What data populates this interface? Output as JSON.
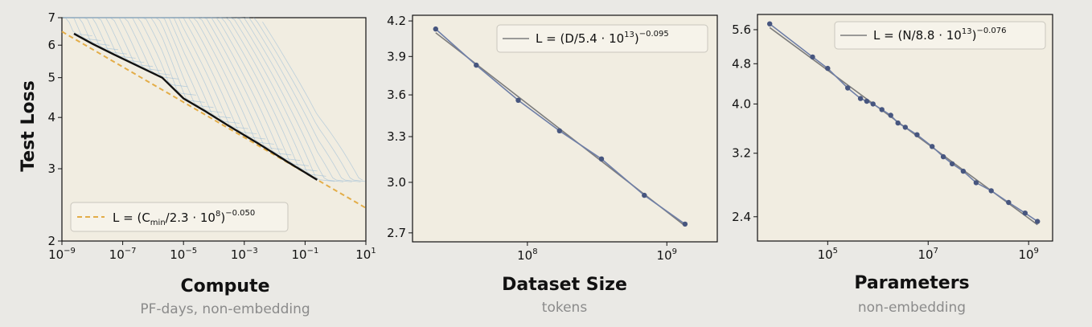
{
  "figure": {
    "ylabel": "Test Loss",
    "colors": {
      "background": "#eae9e5",
      "plot_area": "#f1ede1",
      "fit_dashed": "#e3ad48",
      "envelope": "#111111",
      "curves": "#8fb6d6",
      "data_line": "#6f7fa7",
      "fit_line": "#7c7c7c",
      "marker": "#47567f",
      "big_title": "#111111",
      "subtitle": "#8b8b8b"
    }
  },
  "panels": [
    {
      "id": "compute",
      "title": "Compute",
      "subtitle": "PF-days, non-embedding",
      "legend": {
        "label": "L = (C",
        "subscript": "min",
        "rest": "/2.3 · 10",
        "exp_base": "8",
        "exp": "−0.050"
      },
      "yticks": [
        {
          "label": "7",
          "v": 7
        },
        {
          "label": "6",
          "v": 6
        },
        {
          "label": "5",
          "v": 5
        },
        {
          "label": "4",
          "v": 4
        },
        {
          "label": "3",
          "v": 3
        },
        {
          "label": "2",
          "v": 2
        }
      ],
      "xticks": [
        {
          "base": "10",
          "exp": "−9",
          "v": -9
        },
        {
          "base": "10",
          "exp": "−7",
          "v": -7
        },
        {
          "base": "10",
          "exp": "−5",
          "v": -5
        },
        {
          "base": "10",
          "exp": "−3",
          "v": -3
        },
        {
          "base": "10",
          "exp": "−1",
          "v": -1
        },
        {
          "base": "10",
          "exp": "1",
          "v": 1
        }
      ]
    },
    {
      "id": "dataset",
      "title": "Dataset Size",
      "subtitle": "tokens",
      "legend": {
        "label": "L = (D/5.4 · 10",
        "exp_base": "13",
        "exp": "−0.095"
      },
      "yticks": [
        {
          "label": "4.2",
          "v": 4.2
        },
        {
          "label": "3.9",
          "v": 3.9
        },
        {
          "label": "3.6",
          "v": 3.6
        },
        {
          "label": "3.3",
          "v": 3.3
        },
        {
          "label": "3.0",
          "v": 3.0
        },
        {
          "label": "2.7",
          "v": 2.7
        }
      ],
      "xticks": [
        {
          "base": "10",
          "exp": "8",
          "v": 8
        },
        {
          "base": "10",
          "exp": "9",
          "v": 9
        }
      ]
    },
    {
      "id": "parameters",
      "title": "Parameters",
      "subtitle": "non-embedding",
      "legend": {
        "label": "L = (N/8.8 · 10",
        "exp_base": "13",
        "exp": "−0.076"
      },
      "yticks": [
        {
          "label": "5.6",
          "v": 5.6
        },
        {
          "label": "4.8",
          "v": 4.8
        },
        {
          "label": "4.0",
          "v": 4.0
        },
        {
          "label": "3.2",
          "v": 3.2
        },
        {
          "label": "2.4",
          "v": 2.4
        }
      ],
      "xticks": [
        {
          "base": "10",
          "exp": "5",
          "v": 5
        },
        {
          "base": "10",
          "exp": "7",
          "v": 7
        },
        {
          "base": "10",
          "exp": "9",
          "v": 9
        }
      ]
    }
  ],
  "chart_data": [
    {
      "type": "line",
      "xscale": "log",
      "yscale": "log",
      "xlim": [
        1e-09,
        10
      ],
      "ylim": [
        2,
        7
      ],
      "xlabel": "Compute",
      "ylabel": "Test Loss",
      "fit": {
        "label": "L = (C_min/2.3 · 10^8)^−0.050",
        "style": "dashed",
        "x": [
          1e-09,
          10
        ]
      },
      "series": [
        {
          "role": "frontier",
          "x": [
            2.5e-09,
            1e-08,
            5e-08,
            3e-07,
            2e-06,
            1e-05,
            5e-05,
            0.0003,
            0.003,
            0.03,
            0.25
          ],
          "y": [
            6.4,
            6.05,
            5.7,
            5.35,
            5.0,
            4.45,
            4.15,
            3.82,
            3.45,
            3.1,
            2.82
          ]
        }
      ],
      "legend_position": "lower-left",
      "grid": false
    },
    {
      "type": "line",
      "xscale": "log",
      "yscale": "log",
      "xlim": [
        15000000.0,
        2300000000.0
      ],
      "ylim": [
        2.65,
        4.25
      ],
      "xlabel": "Dataset Size",
      "ylabel": "Test Loss",
      "fit": {
        "label": "L = (D/5.4 · 10^13)^−0.095",
        "x": [
          22000000.0,
          1350000000.0
        ]
      },
      "series": [
        {
          "role": "data",
          "x": [
            22000000.0,
            43000000.0,
            86000000.0,
            170000000.0,
            340000000.0,
            690000000.0,
            1350000000.0
          ],
          "y": [
            4.13,
            3.83,
            3.56,
            3.34,
            3.15,
            2.92,
            2.75
          ]
        }
      ],
      "legend_position": "upper-right",
      "grid": false
    },
    {
      "type": "line",
      "xscale": "log",
      "yscale": "log",
      "xlim": [
        4000.0,
        3000000000.0
      ],
      "ylim": [
        2.15,
        6.0
      ],
      "xlabel": "Parameters",
      "ylabel": "Test Loss",
      "fit": {
        "label": "L = (N/8.8 · 10^13)^−0.076",
        "x": [
          7000.0,
          1500000000.0
        ]
      },
      "series": [
        {
          "role": "data",
          "x": [
            7000.0,
            50000.0,
            100000.0,
            250000.0,
            450000.0,
            600000.0,
            800000.0,
            1200000.0,
            1800000.0,
            2500000.0,
            3500000.0,
            6000000.0,
            12000000.0,
            20000000.0,
            30000000.0,
            50000000.0,
            90000000.0,
            180000000.0,
            400000000.0,
            850000000.0,
            1500000000.0
          ],
          "y": [
            5.75,
            4.95,
            4.7,
            4.3,
            4.1,
            4.05,
            4.0,
            3.9,
            3.8,
            3.67,
            3.6,
            3.48,
            3.3,
            3.15,
            3.05,
            2.95,
            2.8,
            2.7,
            2.56,
            2.44,
            2.35
          ]
        }
      ],
      "legend_position": "upper-right",
      "grid": false
    }
  ]
}
